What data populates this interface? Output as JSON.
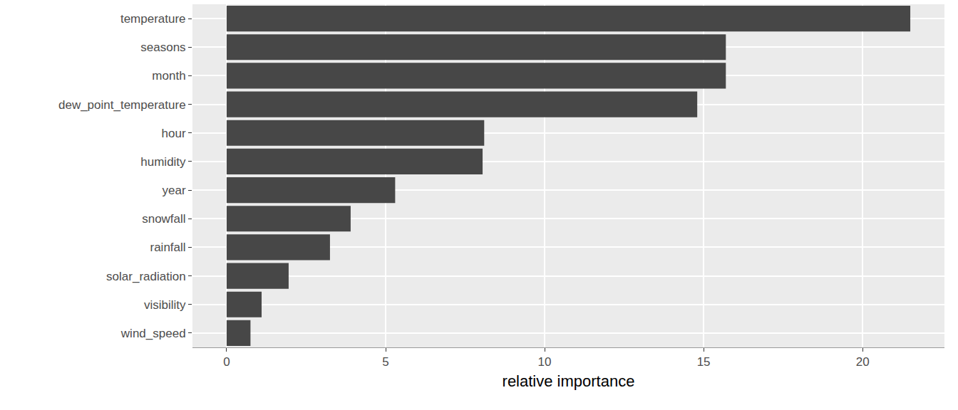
{
  "chart_data": {
    "type": "bar",
    "orientation": "horizontal",
    "x_label": "relative importance",
    "categories": [
      "temperature",
      "seasons",
      "month",
      "dew_point_temperature",
      "hour",
      "humidity",
      "year",
      "snowfall",
      "rainfall",
      "solar_radiation",
      "visibility",
      "wind_speed"
    ],
    "values": [
      21.5,
      15.7,
      15.7,
      14.8,
      8.1,
      8.05,
      5.3,
      3.9,
      3.25,
      1.95,
      1.1,
      0.75
    ],
    "color": "#474747",
    "xlim": [
      -1.075,
      22.575
    ],
    "xticks": [
      0,
      5,
      10,
      15,
      20
    ],
    "grid": true
  }
}
